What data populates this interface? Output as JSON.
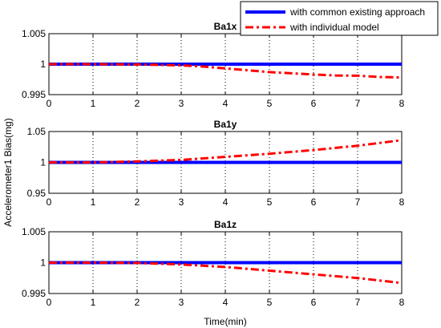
{
  "chart_data": {
    "type": "line",
    "ylabel": "Accelerometer1 Bias(mg)",
    "xlabel": "Time(min)",
    "legend": {
      "placement": "top-right",
      "entries": [
        "with common existing approach",
        "with individual model"
      ]
    },
    "colors": {
      "common": "#0000ff",
      "individual": "#ff0000"
    },
    "x_ticks": [
      "0",
      "1",
      "2",
      "3",
      "4",
      "5",
      "6",
      "7",
      "8"
    ],
    "xlim": [
      0,
      8
    ],
    "grid": "vertical dotted",
    "subplots": [
      {
        "title": "Ba1x",
        "ylim": [
          0.995,
          1.005
        ],
        "y_ticks": [
          0.995,
          1,
          1.005
        ],
        "y_tick_labels": [
          "0.995",
          "1",
          "1.005"
        ],
        "series": [
          {
            "name": "with common existing approach",
            "style": "solid",
            "x": [
              0,
              8
            ],
            "y": [
              1,
              1
            ]
          },
          {
            "name": "with individual model",
            "style": "dash-dot",
            "x": [
              0,
              1,
              2,
              3,
              3.5,
              4,
              4.5,
              5,
              5.5,
              6,
              6.5,
              7,
              7.5,
              8
            ],
            "y": [
              1.0,
              1.0,
              0.99995,
              0.9998,
              0.9996,
              0.9993,
              0.999,
              0.9987,
              0.9985,
              0.9983,
              0.99815,
              0.9981,
              0.9979,
              0.9978
            ]
          }
        ]
      },
      {
        "title": "Ba1y",
        "ylim": [
          0.95,
          1.05
        ],
        "y_ticks": [
          0.95,
          1,
          1.05
        ],
        "y_tick_labels": [
          "0.95",
          "1",
          "1.05"
        ],
        "series": [
          {
            "name": "with common existing approach",
            "style": "solid",
            "x": [
              0,
              8
            ],
            "y": [
              1,
              1
            ]
          },
          {
            "name": "with individual model",
            "style": "dash-dot",
            "x": [
              0,
              1,
              2,
              3,
              4,
              5,
              6,
              7,
              8
            ],
            "y": [
              1.0,
              1.0,
              1.0015,
              1.004,
              1.009,
              1.014,
              1.02,
              1.027,
              1.036
            ]
          }
        ]
      },
      {
        "title": "Ba1z",
        "ylim": [
          0.995,
          1.005
        ],
        "y_ticks": [
          0.995,
          1,
          1.005
        ],
        "y_tick_labels": [
          "0.995",
          "1",
          "1.005"
        ],
        "series": [
          {
            "name": "with common existing approach",
            "style": "solid",
            "x": [
              0,
              8
            ],
            "y": [
              1,
              1
            ]
          },
          {
            "name": "with individual model",
            "style": "dash-dot",
            "x": [
              0,
              1,
              2,
              3,
              4,
              5,
              6,
              7,
              7.5,
              8
            ],
            "y": [
              1.0,
              1.0,
              0.99995,
              0.9997,
              0.9993,
              0.9987,
              0.9981,
              0.9975,
              0.9971,
              0.9967
            ]
          }
        ]
      }
    ]
  }
}
